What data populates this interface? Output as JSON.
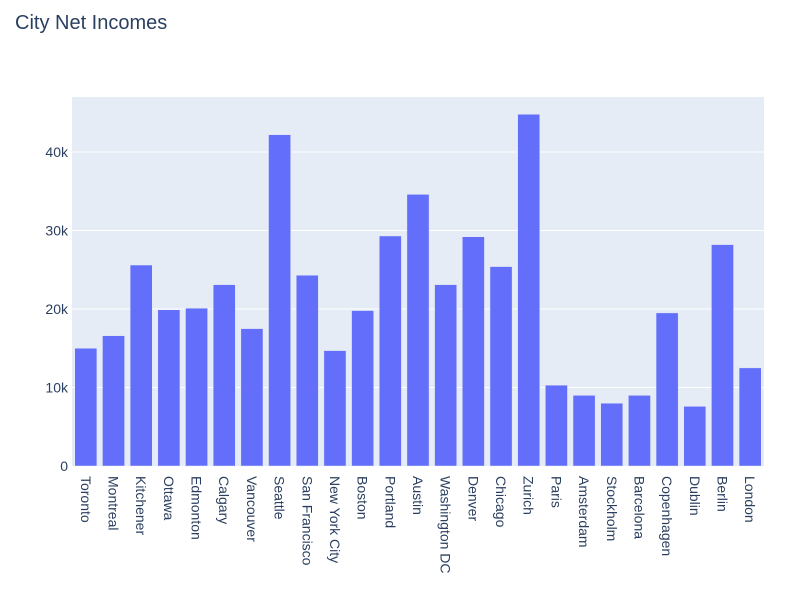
{
  "chart_data": {
    "type": "bar",
    "title": "City Net Incomes",
    "xlabel": "",
    "ylabel": "",
    "ylim": [
      0,
      47000
    ],
    "yticks": [
      0,
      10000,
      20000,
      30000,
      40000
    ],
    "ytick_labels": [
      "0",
      "10k",
      "20k",
      "30k",
      "40k"
    ],
    "grid": true,
    "bar_color": "#636efa",
    "plot_bg": "#e5ecf6",
    "categories": [
      "Toronto",
      "Montreal",
      "Kitchener",
      "Ottawa",
      "Edmonton",
      "Calgary",
      "Vancouver",
      "Seattle",
      "San Francisco",
      "New York City",
      "Boston",
      "Portland",
      "Austin",
      "Washington DC",
      "Denver",
      "Chicago",
      "Zurich",
      "Paris",
      "Amsterdam",
      "Stockholm",
      "Barcelona",
      "Copenhagen",
      "Dublin",
      "Berlin",
      "London"
    ],
    "values": [
      15000,
      16600,
      25600,
      19900,
      20100,
      23100,
      17500,
      42200,
      24300,
      14700,
      19800,
      29300,
      34600,
      23100,
      29200,
      25400,
      44800,
      10300,
      9000,
      8000,
      9000,
      19500,
      7600,
      28200,
      12500
    ]
  }
}
